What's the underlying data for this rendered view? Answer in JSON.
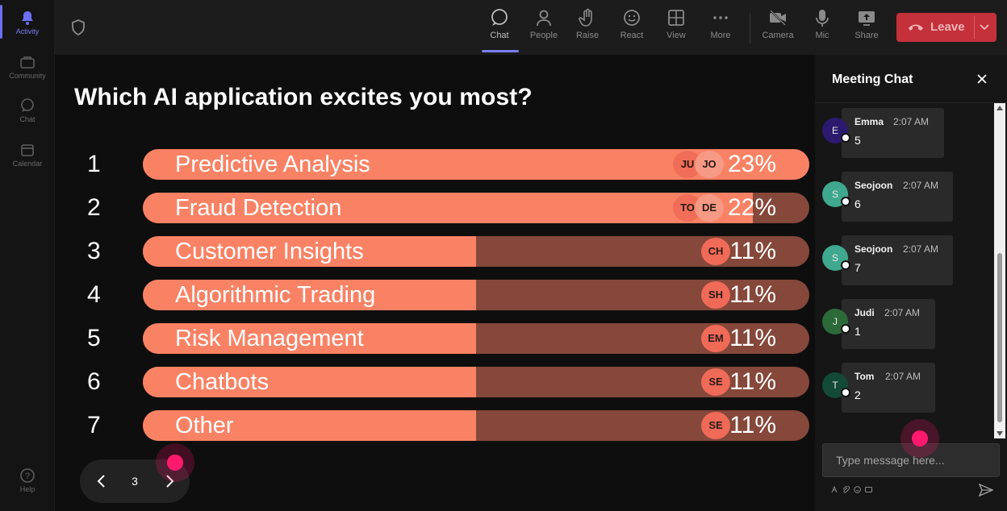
{
  "rail": {
    "items": [
      {
        "label": "Activity",
        "icon": "bell-icon",
        "active": true
      },
      {
        "label": "Community",
        "icon": "community-icon",
        "active": false
      },
      {
        "label": "Chat",
        "icon": "chat-bubble-icon",
        "active": false
      },
      {
        "label": "Calendar",
        "icon": "calendar-icon",
        "active": false
      },
      {
        "label": "Help",
        "icon": "help-icon",
        "active": false
      }
    ]
  },
  "toolbar": {
    "shield_icon": "shield-icon",
    "buttons": [
      {
        "label": "Chat",
        "icon": "chat-icon",
        "active": true
      },
      {
        "label": "People",
        "icon": "people-icon",
        "active": false
      },
      {
        "label": "Raise",
        "icon": "raise-hand-icon",
        "active": false
      },
      {
        "label": "React",
        "icon": "smiley-icon",
        "active": false
      },
      {
        "label": "View",
        "icon": "grid-view-icon",
        "active": false
      },
      {
        "label": "More",
        "icon": "more-dots-icon",
        "active": false
      },
      {
        "label": "Camera",
        "icon": "camera-off-icon",
        "active": false
      },
      {
        "label": "Mic",
        "icon": "microphone-icon",
        "active": false
      },
      {
        "label": "Share",
        "icon": "share-screen-icon",
        "active": false
      }
    ],
    "leave_label": "Leave",
    "leave_color": "#c4313b",
    "accent_color": "#7a7ff6"
  },
  "poll": {
    "question": "Which AI application excites you most?",
    "options": [
      {
        "num": "1",
        "label": "Predictive Analysis",
        "percent": "23%",
        "fill": 1.0,
        "voters": [
          "JU",
          "JO"
        ]
      },
      {
        "num": "2",
        "label": "Fraud Detection",
        "percent": "22%",
        "fill": 0.915,
        "voters": [
          "TO",
          "DE"
        ]
      },
      {
        "num": "3",
        "label": "Customer Insights",
        "percent": "11%",
        "fill": 0.5,
        "voters": [
          "CH"
        ]
      },
      {
        "num": "4",
        "label": "Algorithmic Trading",
        "percent": "11%",
        "fill": 0.5,
        "voters": [
          "SH"
        ]
      },
      {
        "num": "5",
        "label": "Risk Management",
        "percent": "11%",
        "fill": 0.5,
        "voters": [
          "EM"
        ]
      },
      {
        "num": "6",
        "label": "Chatbots",
        "percent": "11%",
        "fill": 0.5,
        "voters": [
          "SE"
        ]
      },
      {
        "num": "7",
        "label": "Other",
        "percent": "11%",
        "fill": 0.5,
        "voters": [
          "SE"
        ]
      }
    ],
    "bar_color": "#f98265",
    "track_color": "#85483a",
    "page": "3"
  },
  "chat": {
    "title": "Meeting Chat",
    "messages": [
      {
        "initial": "E",
        "author": "Emma",
        "time": "2:07 AM",
        "text": "5",
        "avatar_color": "#2b1a6e"
      },
      {
        "initial": "S",
        "author": "Seojoon",
        "time": "2:07 AM",
        "text": "6",
        "avatar_color": "#3fa88e"
      },
      {
        "initial": "S",
        "author": "Seojoon",
        "time": "2:07 AM",
        "text": "7",
        "avatar_color": "#3fa88e"
      },
      {
        "initial": "J",
        "author": "Judi",
        "time": "2:07 AM",
        "text": "1",
        "avatar_color": "#2c6a3a"
      },
      {
        "initial": "T",
        "author": "Tom",
        "time": "2:07 AM",
        "text": "2",
        "avatar_color": "#124a37"
      }
    ],
    "compose_placeholder": "Type message here..."
  }
}
